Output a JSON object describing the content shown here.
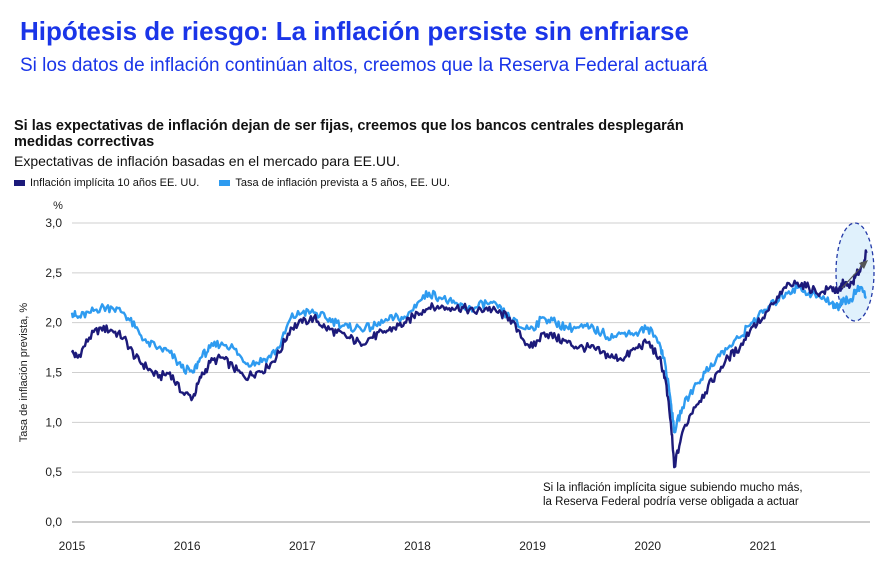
{
  "header": {
    "title": "Hipótesis de riesgo: La inflación persiste sin enfriarse",
    "subtitle": "Si los datos de inflación continúan altos, creemos que la Reserva Federal actuará"
  },
  "colors": {
    "headline": "#1a35e8",
    "series_dark": "#1c1a7a",
    "series_light": "#2e9bf0",
    "highlight": "#dbeefb"
  },
  "chart_data": {
    "type": "line",
    "title": "Si las expectativas de inflación dejan de ser fijas, creemos que los bancos centrales desplegarán medidas correctivas",
    "subtitle": "Expectativas de inflación basadas en el mercado para EE.UU.",
    "ylabel": "Tasa de inflación prevista, %",
    "yunit": "%",
    "ylim": [
      0,
      3.0
    ],
    "yticks": [
      "0,0",
      "0,5",
      "1,0",
      "1,5",
      "2,0",
      "2,5",
      "3,0"
    ],
    "xlim": [
      2015,
      2021.93
    ],
    "xticks": [
      "2015",
      "2016",
      "2017",
      "2018",
      "2019",
      "2020",
      "2021"
    ],
    "annotation": "Si la inflación implícita sigue subiendo mucho más, la Reserva Federal podría verse obligada a actuar",
    "series": [
      {
        "name": "Inflación implícita 10 años EE. UU.",
        "x": [
          2015.0,
          2015.05,
          2015.15,
          2015.25,
          2015.35,
          2015.45,
          2015.55,
          2015.65,
          2015.75,
          2015.85,
          2015.95,
          2016.05,
          2016.12,
          2016.2,
          2016.3,
          2016.4,
          2016.5,
          2016.6,
          2016.7,
          2016.8,
          2016.9,
          2017.0,
          2017.1,
          2017.2,
          2017.3,
          2017.4,
          2017.5,
          2017.6,
          2017.7,
          2017.8,
          2017.9,
          2018.0,
          2018.1,
          2018.2,
          2018.3,
          2018.4,
          2018.5,
          2018.6,
          2018.7,
          2018.8,
          2018.9,
          2019.0,
          2019.1,
          2019.2,
          2019.3,
          2019.4,
          2019.5,
          2019.6,
          2019.7,
          2019.8,
          2019.9,
          2020.0,
          2020.1,
          2020.15,
          2020.2,
          2020.23,
          2020.3,
          2020.4,
          2020.5,
          2020.6,
          2020.7,
          2020.8,
          2020.9,
          2021.0,
          2021.1,
          2021.2,
          2021.3,
          2021.4,
          2021.5,
          2021.6,
          2021.65,
          2021.7,
          2021.75,
          2021.8,
          2021.85,
          2021.9
        ],
        "values": [
          1.7,
          1.65,
          1.85,
          1.95,
          1.92,
          1.85,
          1.65,
          1.55,
          1.45,
          1.5,
          1.3,
          1.25,
          1.45,
          1.6,
          1.65,
          1.55,
          1.45,
          1.5,
          1.55,
          1.7,
          1.95,
          2.0,
          2.05,
          1.95,
          1.9,
          1.85,
          1.8,
          1.85,
          1.9,
          1.95,
          2.0,
          2.1,
          2.15,
          2.15,
          2.15,
          2.15,
          2.1,
          2.15,
          2.1,
          2.05,
          1.85,
          1.75,
          1.9,
          1.85,
          1.8,
          1.75,
          1.75,
          1.7,
          1.65,
          1.65,
          1.75,
          1.8,
          1.65,
          1.45,
          1.0,
          0.55,
          0.9,
          1.15,
          1.3,
          1.5,
          1.65,
          1.75,
          1.95,
          2.05,
          2.2,
          2.35,
          2.4,
          2.35,
          2.3,
          2.35,
          2.3,
          2.4,
          2.35,
          2.45,
          2.55,
          2.7
        ]
      },
      {
        "name": "Tasa de inflación prevista a 5 años, EE. UU.",
        "x": [
          2015.0,
          2015.05,
          2015.15,
          2015.25,
          2015.35,
          2015.45,
          2015.55,
          2015.65,
          2015.75,
          2015.85,
          2015.95,
          2016.05,
          2016.12,
          2016.2,
          2016.3,
          2016.4,
          2016.5,
          2016.6,
          2016.7,
          2016.8,
          2016.9,
          2017.0,
          2017.1,
          2017.2,
          2017.3,
          2017.4,
          2017.5,
          2017.6,
          2017.7,
          2017.8,
          2017.9,
          2018.0,
          2018.1,
          2018.2,
          2018.3,
          2018.4,
          2018.5,
          2018.6,
          2018.7,
          2018.8,
          2018.9,
          2019.0,
          2019.1,
          2019.2,
          2019.3,
          2019.4,
          2019.5,
          2019.6,
          2019.7,
          2019.8,
          2019.9,
          2020.0,
          2020.1,
          2020.15,
          2020.2,
          2020.23,
          2020.3,
          2020.4,
          2020.5,
          2020.6,
          2020.7,
          2020.8,
          2020.9,
          2021.0,
          2021.1,
          2021.2,
          2021.3,
          2021.4,
          2021.5,
          2021.6,
          2021.65,
          2021.7,
          2021.75,
          2021.8,
          2021.85,
          2021.9
        ],
        "values": [
          2.1,
          2.05,
          2.1,
          2.15,
          2.15,
          2.1,
          1.95,
          1.8,
          1.75,
          1.7,
          1.55,
          1.5,
          1.65,
          1.75,
          1.8,
          1.75,
          1.6,
          1.6,
          1.65,
          1.75,
          2.05,
          2.1,
          2.1,
          2.05,
          2.0,
          1.95,
          1.95,
          1.95,
          2.0,
          2.05,
          2.05,
          2.2,
          2.3,
          2.25,
          2.2,
          2.15,
          2.15,
          2.2,
          2.15,
          2.05,
          1.95,
          1.95,
          2.05,
          2.0,
          1.95,
          1.95,
          1.95,
          1.9,
          1.85,
          1.9,
          1.9,
          1.95,
          1.8,
          1.6,
          1.2,
          0.9,
          1.15,
          1.35,
          1.5,
          1.65,
          1.75,
          1.85,
          2.0,
          2.1,
          2.2,
          2.3,
          2.35,
          2.3,
          2.25,
          2.2,
          2.15,
          2.25,
          2.2,
          2.3,
          2.35,
          2.25
        ]
      }
    ]
  }
}
